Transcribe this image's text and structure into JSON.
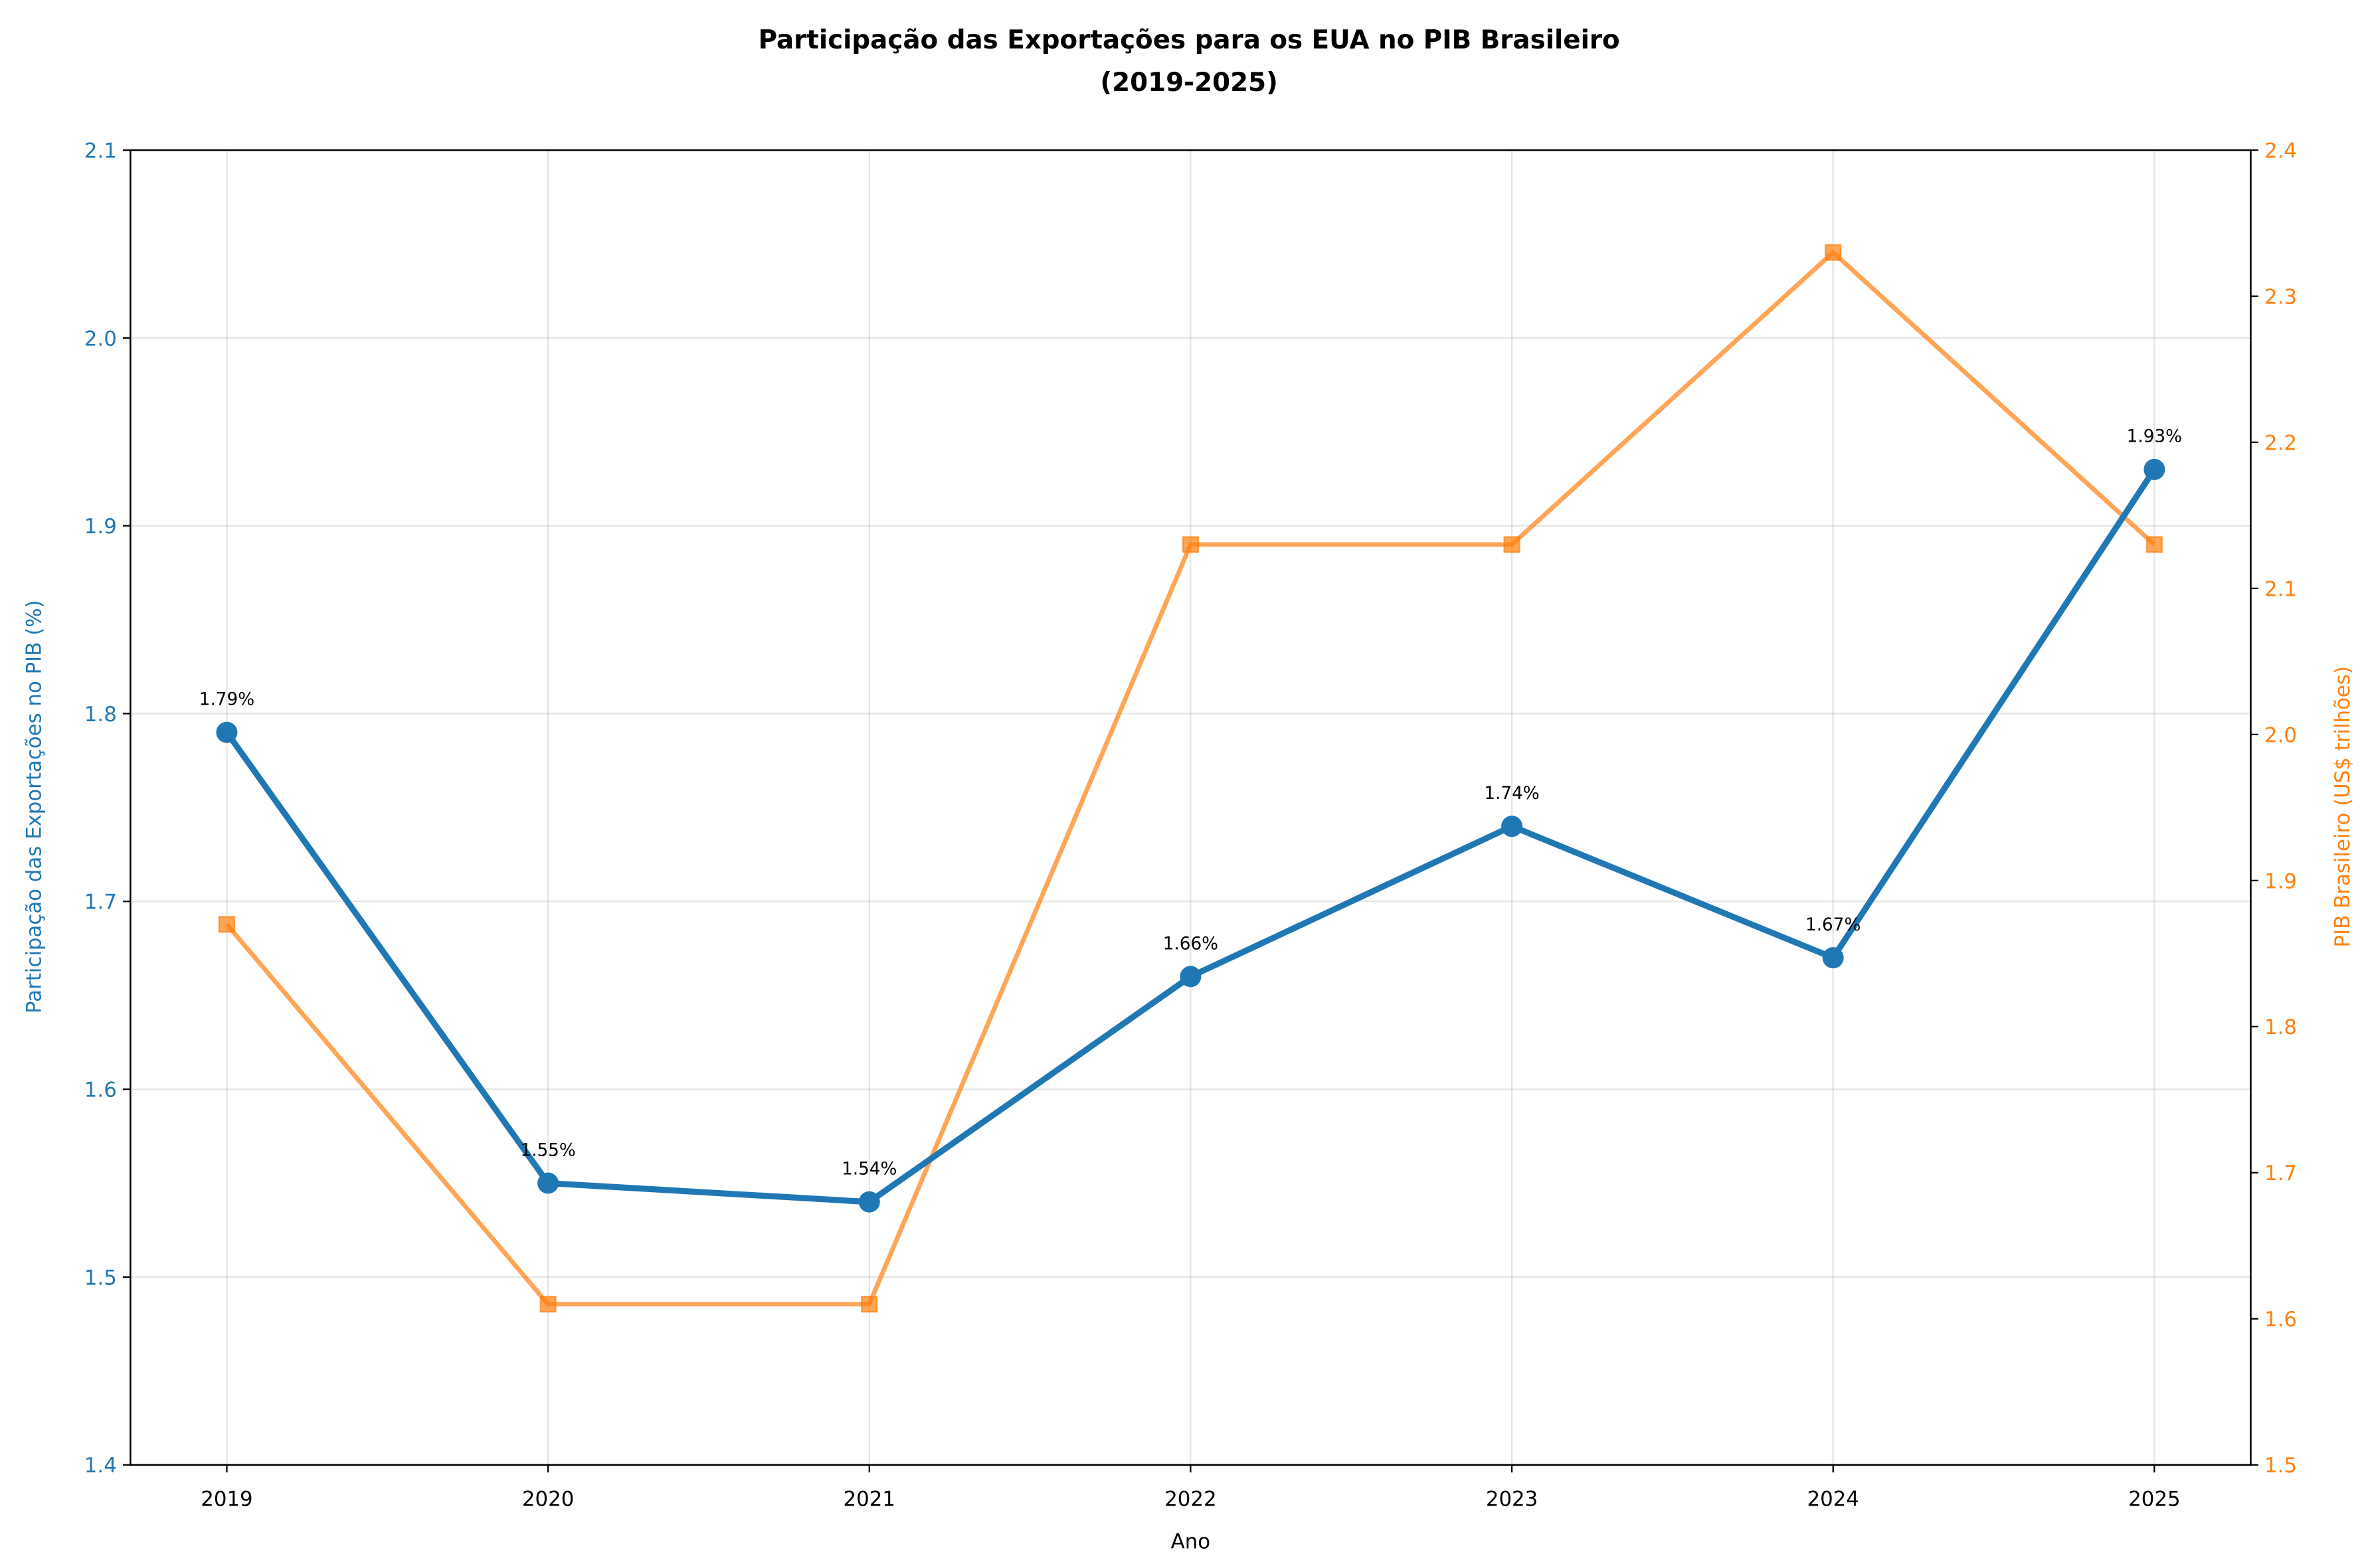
{
  "chart_data": {
    "type": "line",
    "title": "Participação das Exportações para os EUA no PIB Brasileiro\n(2019-2025)",
    "xlabel": "Ano",
    "ylabel_left": "Participação das Exportações no PIB (%)",
    "ylabel_right": "PIB Brasileiro (US$ trilhões)",
    "categories": [
      "2019",
      "2020",
      "2021",
      "2022",
      "2023",
      "2024",
      "2025"
    ],
    "x_ticks": [
      "2019",
      "2020",
      "2021",
      "2022",
      "2023",
      "2024",
      "2025"
    ],
    "xlim": [
      2018.7,
      2025.3
    ],
    "ylim_left": [
      1.4,
      2.1
    ],
    "ylim_right": [
      1.5,
      2.4
    ],
    "y_ticks_left": [
      "1.4",
      "1.5",
      "1.6",
      "1.7",
      "1.8",
      "1.9",
      "2.0",
      "2.1"
    ],
    "y_ticks_right": [
      "1.5",
      "1.6",
      "1.7",
      "1.8",
      "1.9",
      "2.0",
      "2.1",
      "2.2",
      "2.3",
      "2.4"
    ],
    "grid": true,
    "series": [
      {
        "axis": "left",
        "marker": "circle",
        "color": "#1f77b4",
        "values": [
          1.79,
          1.55,
          1.54,
          1.66,
          1.74,
          1.67,
          1.93
        ],
        "data_labels": [
          "1.79%",
          "1.55%",
          "1.54%",
          "1.66%",
          "1.74%",
          "1.67%",
          "1.93%"
        ]
      },
      {
        "axis": "right",
        "marker": "square",
        "color": "#ff7f0e",
        "values": [
          1.87,
          1.61,
          1.61,
          2.13,
          2.13,
          2.33,
          2.13
        ]
      }
    ]
  }
}
